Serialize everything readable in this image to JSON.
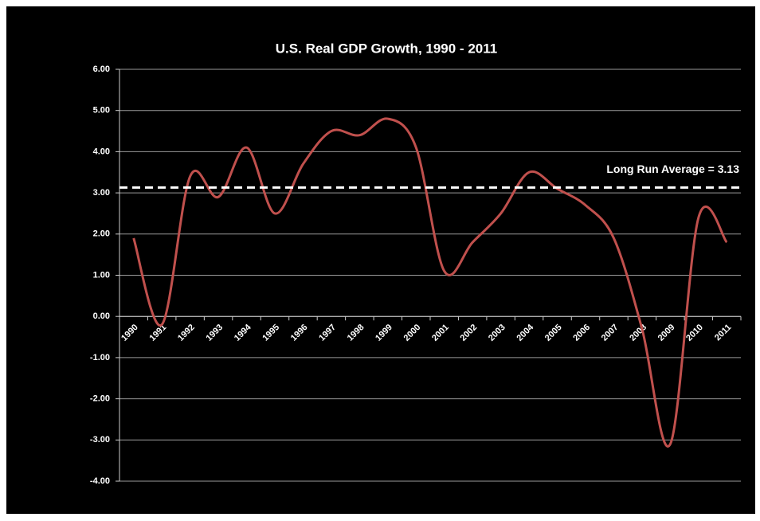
{
  "chart_data": {
    "type": "line",
    "title": "U.S. Real GDP Growth, 1990 - 2011",
    "categories": [
      "1990",
      "1991",
      "1992",
      "1993",
      "1994",
      "1995",
      "1996",
      "1997",
      "1998",
      "1999",
      "2000",
      "2001",
      "2002",
      "2003",
      "2004",
      "2005",
      "2006",
      "2007",
      "2008",
      "2009",
      "2010",
      "2011"
    ],
    "series": [
      {
        "name": "Real GDP Growth",
        "color": "#c0504d",
        "values": [
          1.9,
          -0.2,
          3.4,
          2.9,
          4.1,
          2.5,
          3.7,
          4.5,
          4.4,
          4.8,
          4.1,
          1.1,
          1.8,
          2.5,
          3.5,
          3.1,
          2.7,
          1.9,
          -0.3,
          -3.1,
          2.4,
          1.8
        ]
      }
    ],
    "average": {
      "label": "Long Run Average = 3.13",
      "value": 3.13,
      "color": "#ffffff"
    },
    "ylim": [
      -4,
      6
    ],
    "yticks": [
      {
        "value": -4,
        "label": "-4.00"
      },
      {
        "value": -3,
        "label": "-3.00"
      },
      {
        "value": -2,
        "label": "-2.00"
      },
      {
        "value": -1,
        "label": "-1.00"
      },
      {
        "value": 0,
        "label": "0.00"
      },
      {
        "value": 1,
        "label": "1.00"
      },
      {
        "value": 2,
        "label": "2.00"
      },
      {
        "value": 3,
        "label": "3.00"
      },
      {
        "value": 4,
        "label": "4.00"
      },
      {
        "value": 5,
        "label": "5.00"
      },
      {
        "value": 6,
        "label": "6.00"
      }
    ],
    "grid": true
  }
}
